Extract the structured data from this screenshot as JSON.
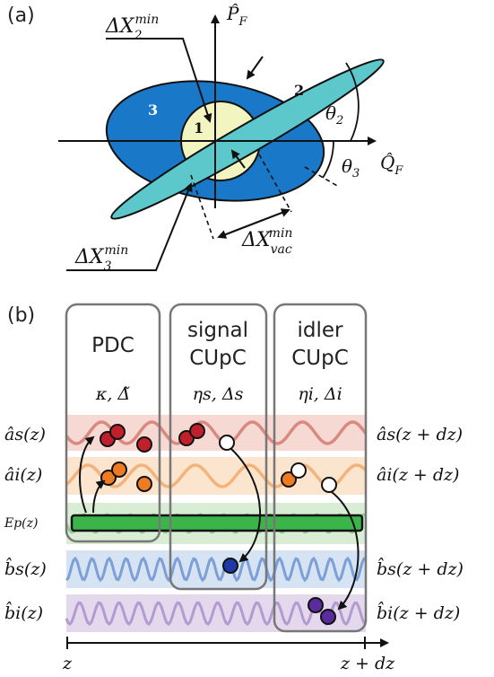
{
  "panel_a": {
    "label": "(a)",
    "axis_x": "Q̂",
    "axis_x_sub": "F",
    "axis_y": "P̂",
    "axis_y_sub": "F",
    "region_1": "1",
    "region_2": "2",
    "region_3": "3",
    "dx2": "ΔX",
    "dx2_sub": "2",
    "dx2_sup": "min",
    "dx3": "ΔX",
    "dx3_sub": "3",
    "dx3_sup": "min",
    "dxvac": "ΔX",
    "dxvac_sub": "vac",
    "dxvac_sup": "min",
    "theta2": "θ",
    "theta2_sub": "2",
    "theta3": "θ",
    "theta3_sub": "3",
    "colors": {
      "ellipse_3": "#1a78c8",
      "ellipse_2": "#5cc8cc",
      "vacuum_circle": "#f2f5c0"
    }
  },
  "panel_b": {
    "label": "(b)",
    "boxes": [
      {
        "title_1": "PDC",
        "title_2": "",
        "params": "κ, Δ̃"
      },
      {
        "title_1": "signal",
        "title_2": "CUpC",
        "params": "ηs, Δs"
      },
      {
        "title_1": "idler",
        "title_2": "CUpC",
        "params": "ηi, Δi"
      }
    ],
    "left_labels": [
      "âs(z)",
      "âi(z)",
      "Ep(z)",
      "b̂s(z)",
      "b̂i(z)"
    ],
    "right_labels": [
      "âs(z + dz)",
      "âi(z + dz)",
      "b̂s(z + dz)",
      "b̂i(z + dz)"
    ],
    "axis_start": "z",
    "axis_end": "z + dz",
    "colors": {
      "as_band": "#f7d9d4",
      "as_wave": "#d98a80",
      "ai_band": "#fbe5cf",
      "ai_wave": "#f3b37a",
      "ep_band": "#d9ecd4",
      "ep_wave": "#8fcc88",
      "pump": "#3bb54a",
      "bs_band": "#d6e3f3",
      "bs_wave": "#7b9fd6",
      "bi_band": "#e3d8ec",
      "bi_wave": "#b39ad1"
    }
  }
}
